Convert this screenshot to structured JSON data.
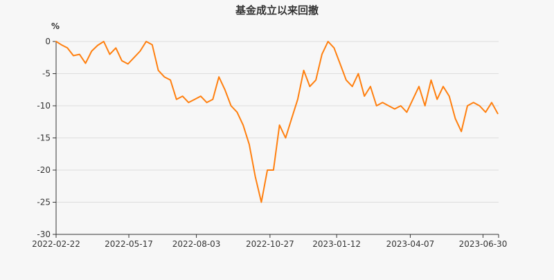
{
  "chart_data": {
    "type": "line",
    "title": "基金成立以来回撤",
    "ylabel": "%",
    "xlabel": "",
    "ylim": [
      -30,
      0
    ],
    "yticks": [
      0,
      -5,
      -10,
      -15,
      -20,
      -25,
      -30
    ],
    "grid": true,
    "legend": "none",
    "xlim": [
      "2022-02-22",
      "2023-07-18"
    ],
    "xtick_labels": [
      "2022-02-22",
      "2022-05-17",
      "2022-08-03",
      "2022-10-27",
      "2023-01-12",
      "2023-04-07",
      "2023-06-30"
    ],
    "series_color": "#ff7f0e",
    "series": [
      {
        "x": [
          "2022-02-22",
          "2022-02-28",
          "2022-03-07",
          "2022-03-14",
          "2022-03-21",
          "2022-03-28",
          "2022-04-04",
          "2022-04-11",
          "2022-04-18",
          "2022-04-25",
          "2022-05-02",
          "2022-05-09",
          "2022-05-16",
          "2022-05-23",
          "2022-05-30",
          "2022-06-06",
          "2022-06-13",
          "2022-06-20",
          "2022-06-27",
          "2022-07-04",
          "2022-07-11",
          "2022-07-18",
          "2022-07-25",
          "2022-08-01",
          "2022-08-08",
          "2022-08-15",
          "2022-08-22",
          "2022-08-29",
          "2022-09-05",
          "2022-09-12",
          "2022-09-19",
          "2022-09-26",
          "2022-10-03",
          "2022-10-10",
          "2022-10-17",
          "2022-10-24",
          "2022-10-31",
          "2022-11-07",
          "2022-11-14",
          "2022-11-21",
          "2022-11-28",
          "2022-12-05",
          "2022-12-12",
          "2022-12-19",
          "2022-12-26",
          "2023-01-02",
          "2023-01-09",
          "2023-01-16",
          "2023-01-23",
          "2023-01-30",
          "2023-02-06",
          "2023-02-13",
          "2023-02-20",
          "2023-02-27",
          "2023-03-06",
          "2023-03-13",
          "2023-03-20",
          "2023-03-27",
          "2023-04-03",
          "2023-04-10",
          "2023-04-17",
          "2023-04-24",
          "2023-05-01",
          "2023-05-08",
          "2023-05-15",
          "2023-05-22",
          "2023-05-29",
          "2023-06-05",
          "2023-06-12",
          "2023-06-19",
          "2023-06-26",
          "2023-07-03",
          "2023-07-10",
          "2023-07-17"
        ],
        "values": [
          0,
          -0.5,
          -1,
          -2.2,
          -2,
          -3.4,
          -1.5,
          -0.6,
          0,
          -2,
          -1,
          -3,
          -3.5,
          -2.5,
          -1.5,
          0,
          -0.5,
          -4.5,
          -5.5,
          -6,
          -9,
          -8.5,
          -9.5,
          -9,
          -8.5,
          -9.5,
          -9,
          -5.5,
          -7.5,
          -10,
          -11,
          -13,
          -16,
          -21,
          -25,
          -20,
          -20,
          -13,
          -15,
          -12,
          -9,
          -4.5,
          -7,
          -6,
          -2,
          0,
          -1,
          -3.5,
          -6,
          -7,
          -5,
          -8.5,
          -7,
          -10,
          -9.5,
          -10,
          -10.5,
          -10,
          -11,
          -9,
          -7,
          -10,
          -6,
          -9,
          -7,
          -8.5,
          -12,
          -14,
          -10,
          -9.5,
          -10,
          -11,
          -9.5,
          -11.2
        ]
      }
    ]
  }
}
